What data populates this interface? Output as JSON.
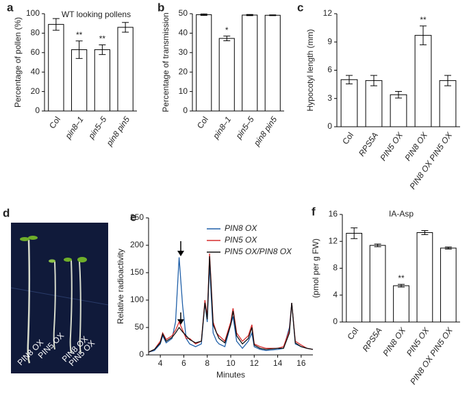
{
  "chart_data": [
    {
      "type": "bar",
      "panel": "a",
      "title": "WT looking pollens",
      "y_label": "Percentage of pollen (%)",
      "categories": [
        "Col",
        "pin8–1",
        "pin5–5",
        "pin8 pin5"
      ],
      "italic_categories": [
        false,
        true,
        true,
        true
      ],
      "values": [
        89,
        63,
        63,
        86
      ],
      "errors": [
        6,
        9,
        5,
        5
      ],
      "stars": [
        null,
        "**",
        "**",
        null
      ],
      "ylim": [
        0,
        100
      ],
      "yticks": [
        0,
        20,
        40,
        60,
        80,
        100
      ],
      "color": "#ffffff"
    },
    {
      "type": "bar",
      "panel": "b",
      "y_label": "Percentage of transmission",
      "categories": [
        "Col",
        "pin8–1",
        "pin5–5",
        "pin8 pin5"
      ],
      "italic_categories": [
        false,
        true,
        true,
        true
      ],
      "values": [
        49.5,
        37.3,
        49.3,
        49.2
      ],
      "errors": [
        0.4,
        1.2,
        0.3,
        0.2
      ],
      "stars": [
        null,
        "*",
        null,
        null
      ],
      "ylim": [
        0,
        50
      ],
      "yticks": [
        0,
        10,
        20,
        30,
        40,
        50
      ],
      "color": "#ffffff"
    },
    {
      "type": "bar",
      "panel": "c",
      "y_label": "Hypocotyl length (mm)",
      "categories": [
        "Col",
        "RPS5A",
        "PIN5 OX",
        "PIN8 OX",
        "PIN8 OX PIN5 OX"
      ],
      "italic_categories": [
        false,
        true,
        true,
        true,
        true
      ],
      "values": [
        5.0,
        4.9,
        3.4,
        9.7,
        4.9
      ],
      "errors": [
        0.45,
        0.55,
        0.35,
        1.0,
        0.55
      ],
      "stars": [
        null,
        null,
        null,
        "**",
        null
      ],
      "ylim": [
        0,
        12
      ],
      "yticks": [
        0,
        3,
        6,
        9,
        12
      ],
      "color": "#ffffff"
    },
    {
      "type": "line",
      "panel": "e",
      "x_label": "Minutes",
      "y_label": "Relative radioactivity",
      "x": [
        3,
        3.5,
        4,
        4.2,
        4.5,
        5,
        5.3,
        5.6,
        5.9,
        6.2,
        6.5,
        7,
        7.5,
        7.8,
        8,
        8.2,
        8.5,
        8.8,
        9,
        9.5,
        10,
        10.2,
        10.5,
        11,
        11.5,
        11.8,
        12,
        12.5,
        13,
        14,
        14.5,
        15,
        15.2,
        15.5,
        16,
        16.5,
        17
      ],
      "series": [
        {
          "name": "PIN8 OX",
          "color": "#1f5fa8",
          "values": [
            5,
            8,
            20,
            35,
            22,
            30,
            60,
            178,
            90,
            30,
            20,
            15,
            20,
            95,
            60,
            165,
            40,
            25,
            20,
            15,
            55,
            70,
            25,
            12,
            25,
            40,
            15,
            10,
            8,
            10,
            12,
            50,
            95,
            20,
            15,
            12,
            10
          ]
        },
        {
          "name": "PIN5 OX",
          "color": "#d62b2b",
          "values": [
            5,
            10,
            25,
            40,
            28,
            35,
            45,
            60,
            45,
            30,
            30,
            20,
            25,
            100,
            70,
            185,
            60,
            40,
            35,
            25,
            60,
            85,
            40,
            25,
            35,
            55,
            20,
            15,
            12,
            12,
            15,
            45,
            95,
            25,
            18,
            12,
            10
          ]
        },
        {
          "name": "PIN5 OX/PIN8 OX",
          "color": "#111111",
          "values": [
            5,
            10,
            22,
            38,
            25,
            32,
            40,
            50,
            42,
            35,
            28,
            22,
            25,
            95,
            65,
            180,
            55,
            40,
            30,
            22,
            55,
            80,
            35,
            20,
            30,
            50,
            18,
            12,
            10,
            12,
            12,
            40,
            95,
            22,
            15,
            12,
            10
          ]
        }
      ],
      "xlim": [
        3,
        17
      ],
      "xticks": [
        4,
        6,
        8,
        10,
        12,
        14,
        16
      ],
      "ylim": [
        0,
        250
      ],
      "yticks": [
        0,
        50,
        100,
        150,
        200,
        250
      ]
    },
    {
      "type": "bar",
      "panel": "f",
      "title": "IA-Asp",
      "y_label": "(pmol per g FW)",
      "categories": [
        "Col",
        "RPS5A",
        "PIN8 OX",
        "PIN5 OX",
        "PIN8 OX PIN5 OX"
      ],
      "italic_categories": [
        false,
        true,
        true,
        true,
        true
      ],
      "values": [
        13.2,
        11.4,
        5.4,
        13.3,
        11.0
      ],
      "errors": [
        0.8,
        0.2,
        0.2,
        0.3,
        0.15
      ],
      "stars": [
        null,
        null,
        "**",
        null,
        null
      ],
      "ylim": [
        0,
        16
      ],
      "yticks": [
        0,
        4,
        8,
        12,
        16
      ],
      "color": "#ffffff"
    }
  ],
  "photo": {
    "panel": "d",
    "labels": [
      "PIN8 OX",
      "PIN5 OX",
      "PIN8 OX",
      "PIN5 OX"
    ]
  }
}
